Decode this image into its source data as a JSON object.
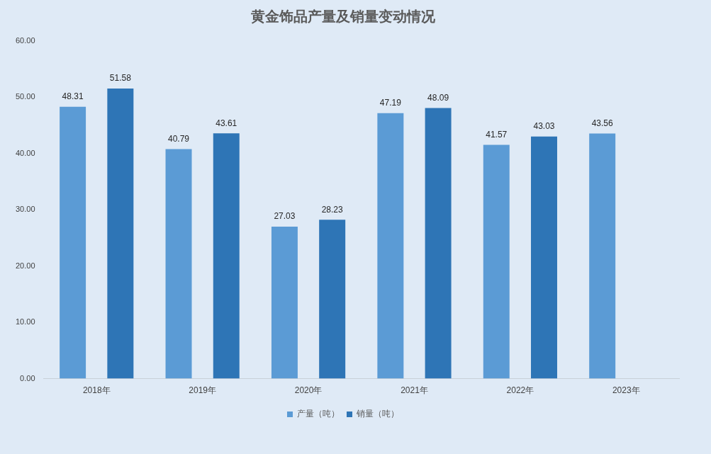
{
  "chart_data": {
    "type": "bar",
    "title": "黄金饰品产量及销量变动情况",
    "categories": [
      "2018年",
      "2019年",
      "2020年",
      "2021年",
      "2022年",
      "2023年"
    ],
    "series": [
      {
        "name": "产量（吨）",
        "color": "#5b9bd5",
        "values": [
          48.31,
          40.79,
          27.03,
          47.19,
          41.57,
          43.56
        ]
      },
      {
        "name": "销量（吨）",
        "color": "#2e75b6",
        "values": [
          51.58,
          43.61,
          28.23,
          48.09,
          43.03,
          null
        ]
      }
    ],
    "ylim": [
      0,
      60
    ],
    "yticks": [
      {
        "value": 0,
        "label": "0.00"
      },
      {
        "value": 10,
        "label": "10.00"
      },
      {
        "value": 20,
        "label": "20.00"
      },
      {
        "value": 30,
        "label": "30.00"
      },
      {
        "value": 40,
        "label": "40.00"
      },
      {
        "value": 50,
        "label": "50.00"
      },
      {
        "value": 60,
        "label": "60.00"
      }
    ],
    "grid": false,
    "legend": "bottom",
    "data_labels": true
  }
}
